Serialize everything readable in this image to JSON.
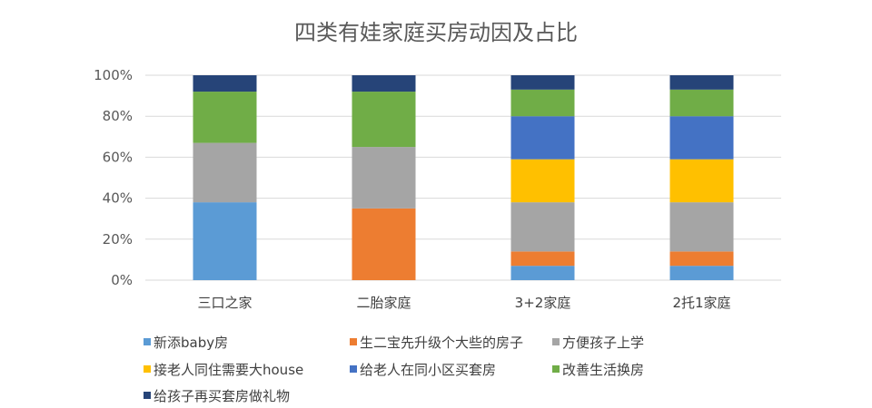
{
  "chart_data": {
    "type": "bar",
    "stacked": true,
    "title": "四类有娃家庭买房动因及占比",
    "xlabel": "",
    "ylabel": "",
    "ylim": [
      0,
      100
    ],
    "yticks": [
      "0%",
      "20%",
      "40%",
      "60%",
      "80%",
      "100%"
    ],
    "categories": [
      "三口之家",
      "二胎家庭",
      "3+2家庭",
      "2托1家庭"
    ],
    "grid": true,
    "legend_position": "bottom",
    "series": [
      {
        "name": "新添baby房",
        "color": "#5b9bd5",
        "values": [
          38,
          0,
          7,
          7
        ]
      },
      {
        "name": "生二宝先升级个大些的房子",
        "color": "#ed7d31",
        "values": [
          0,
          35,
          7,
          7
        ]
      },
      {
        "name": "方便孩子上学",
        "color": "#a5a5a5",
        "values": [
          29,
          30,
          24,
          24
        ]
      },
      {
        "name": "接老人同住需要大house",
        "color": "#ffc000",
        "values": [
          0,
          0,
          21,
          21
        ]
      },
      {
        "name": "给老人在同小区买套房",
        "color": "#4472c4",
        "values": [
          0,
          0,
          21,
          21
        ]
      },
      {
        "name": "改善生活换房",
        "color": "#70ad47",
        "values": [
          25,
          27,
          13,
          13
        ]
      },
      {
        "name": "给孩子再买套房做礼物",
        "color": "#264478",
        "values": [
          8,
          8,
          7,
          7
        ]
      }
    ]
  }
}
